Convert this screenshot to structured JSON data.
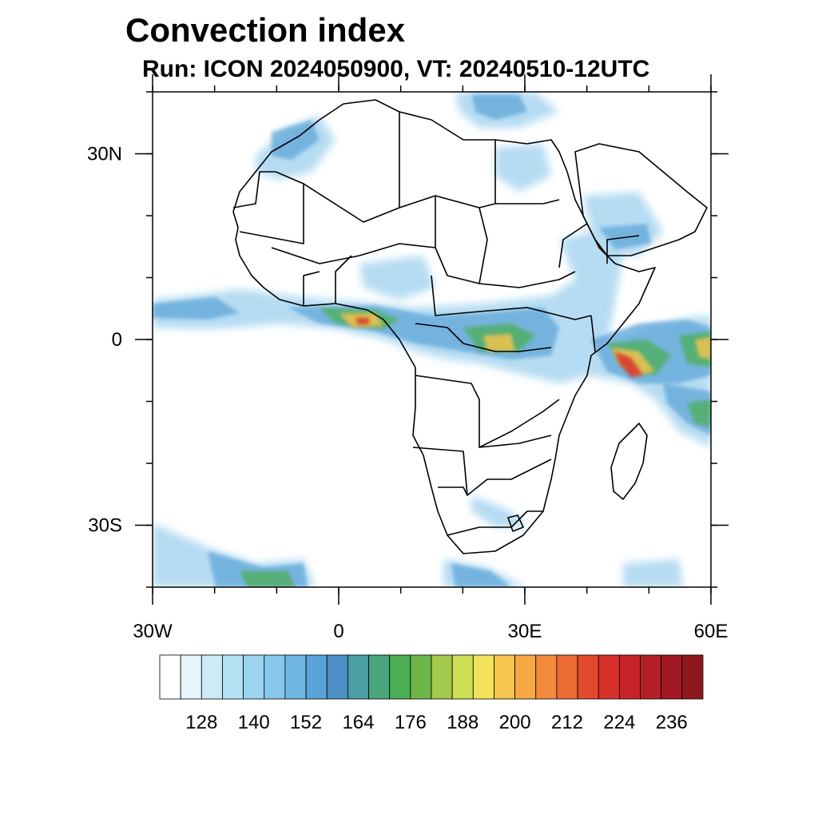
{
  "header": {
    "title": "Convection index",
    "subtitle": "Run: ICON 2024050900,  VT: 20240510-12UTC"
  },
  "map": {
    "region": "Africa",
    "lon_range": [
      -30,
      60
    ],
    "lat_range": [
      -40,
      40
    ],
    "lon_ticks": [
      {
        "value": -30,
        "label": "30W"
      },
      {
        "value": 0,
        "label": "0"
      },
      {
        "value": 30,
        "label": "30E"
      },
      {
        "value": 60,
        "label": "60E"
      }
    ],
    "lat_ticks": [
      {
        "value": 30,
        "label": "30N"
      },
      {
        "value": 0,
        "label": "0"
      },
      {
        "value": -30,
        "label": "30S"
      }
    ]
  },
  "colorbar": {
    "labels": [
      "128",
      "140",
      "152",
      "164",
      "176",
      "188",
      "200",
      "212",
      "224",
      "236"
    ],
    "colors": [
      "#ffffff",
      "#e6f4fb",
      "#cdeaf7",
      "#b4e0f4",
      "#9bd5f1",
      "#86c7ec",
      "#70b7e3",
      "#5aa3d8",
      "#4e8fc6",
      "#4a9ea4",
      "#49a57b",
      "#4bae55",
      "#6eb64a",
      "#a3c94a",
      "#cddf55",
      "#f2e35a",
      "#f6c54e",
      "#f7a845",
      "#f38a3c",
      "#ec6a33",
      "#e24a2d",
      "#d8312b",
      "#c8232a",
      "#b51f27",
      "#a11a23",
      "#8e171f"
    ]
  }
}
